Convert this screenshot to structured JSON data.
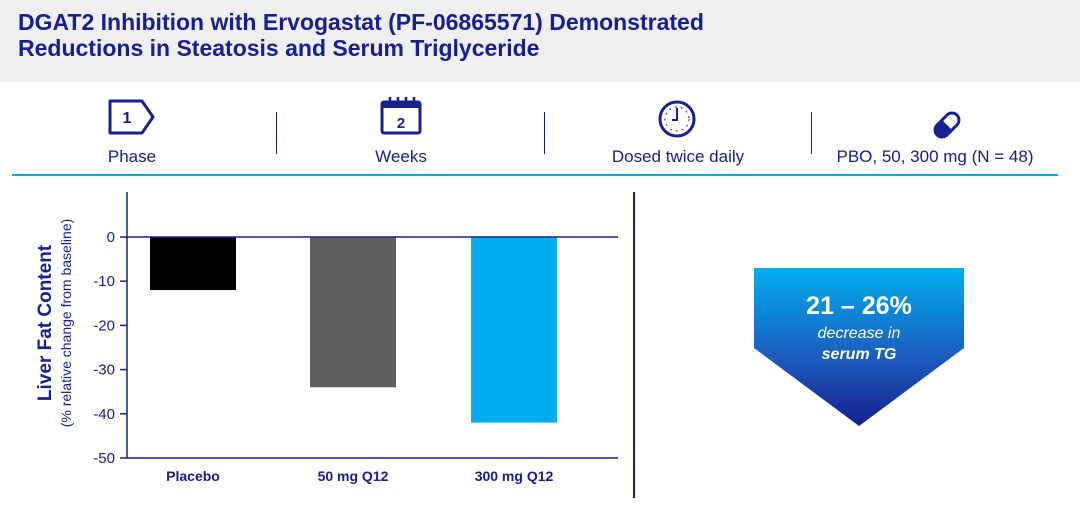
{
  "title": {
    "line1": "DGAT2 Inhibition with Ervogastat (PF-06865571) Demonstrated",
    "line2": "Reductions in Steatosis and Serum Triglyceride"
  },
  "info": [
    {
      "icon": "chevron-tag-icon",
      "value": "1",
      "label": "Phase"
    },
    {
      "icon": "calendar-icon",
      "value": "2",
      "label": "Weeks"
    },
    {
      "icon": "clock-icon",
      "label": "Dosed twice daily"
    },
    {
      "icon": "pill-icon",
      "label": "PBO, 50, 300 mg (N = 48)"
    }
  ],
  "colors": {
    "navy": "#17208f",
    "cyan": "#00aeef",
    "bar_placebo": "#000000",
    "bar_50mg": "#5f6062",
    "bar_300mg": "#00aeef"
  },
  "chart_data": {
    "type": "bar",
    "categories": [
      "Placebo",
      "50 mg Q12",
      "300 mg Q12"
    ],
    "values": [
      -12,
      -34,
      -42
    ],
    "ylabel": "Liver Fat Content",
    "ylabel_sub": "(% relative change from baseline)",
    "ylim": [
      -50,
      0
    ],
    "yticks": [
      0,
      -10,
      -20,
      -30,
      -40,
      -50
    ],
    "ytick_labels": [
      "0",
      "-10",
      "-20",
      "-30",
      "-40",
      "-50"
    ],
    "grid": false
  },
  "callout": {
    "big": "21 – 26%",
    "line2": "decrease in",
    "line3": "serum TG"
  }
}
